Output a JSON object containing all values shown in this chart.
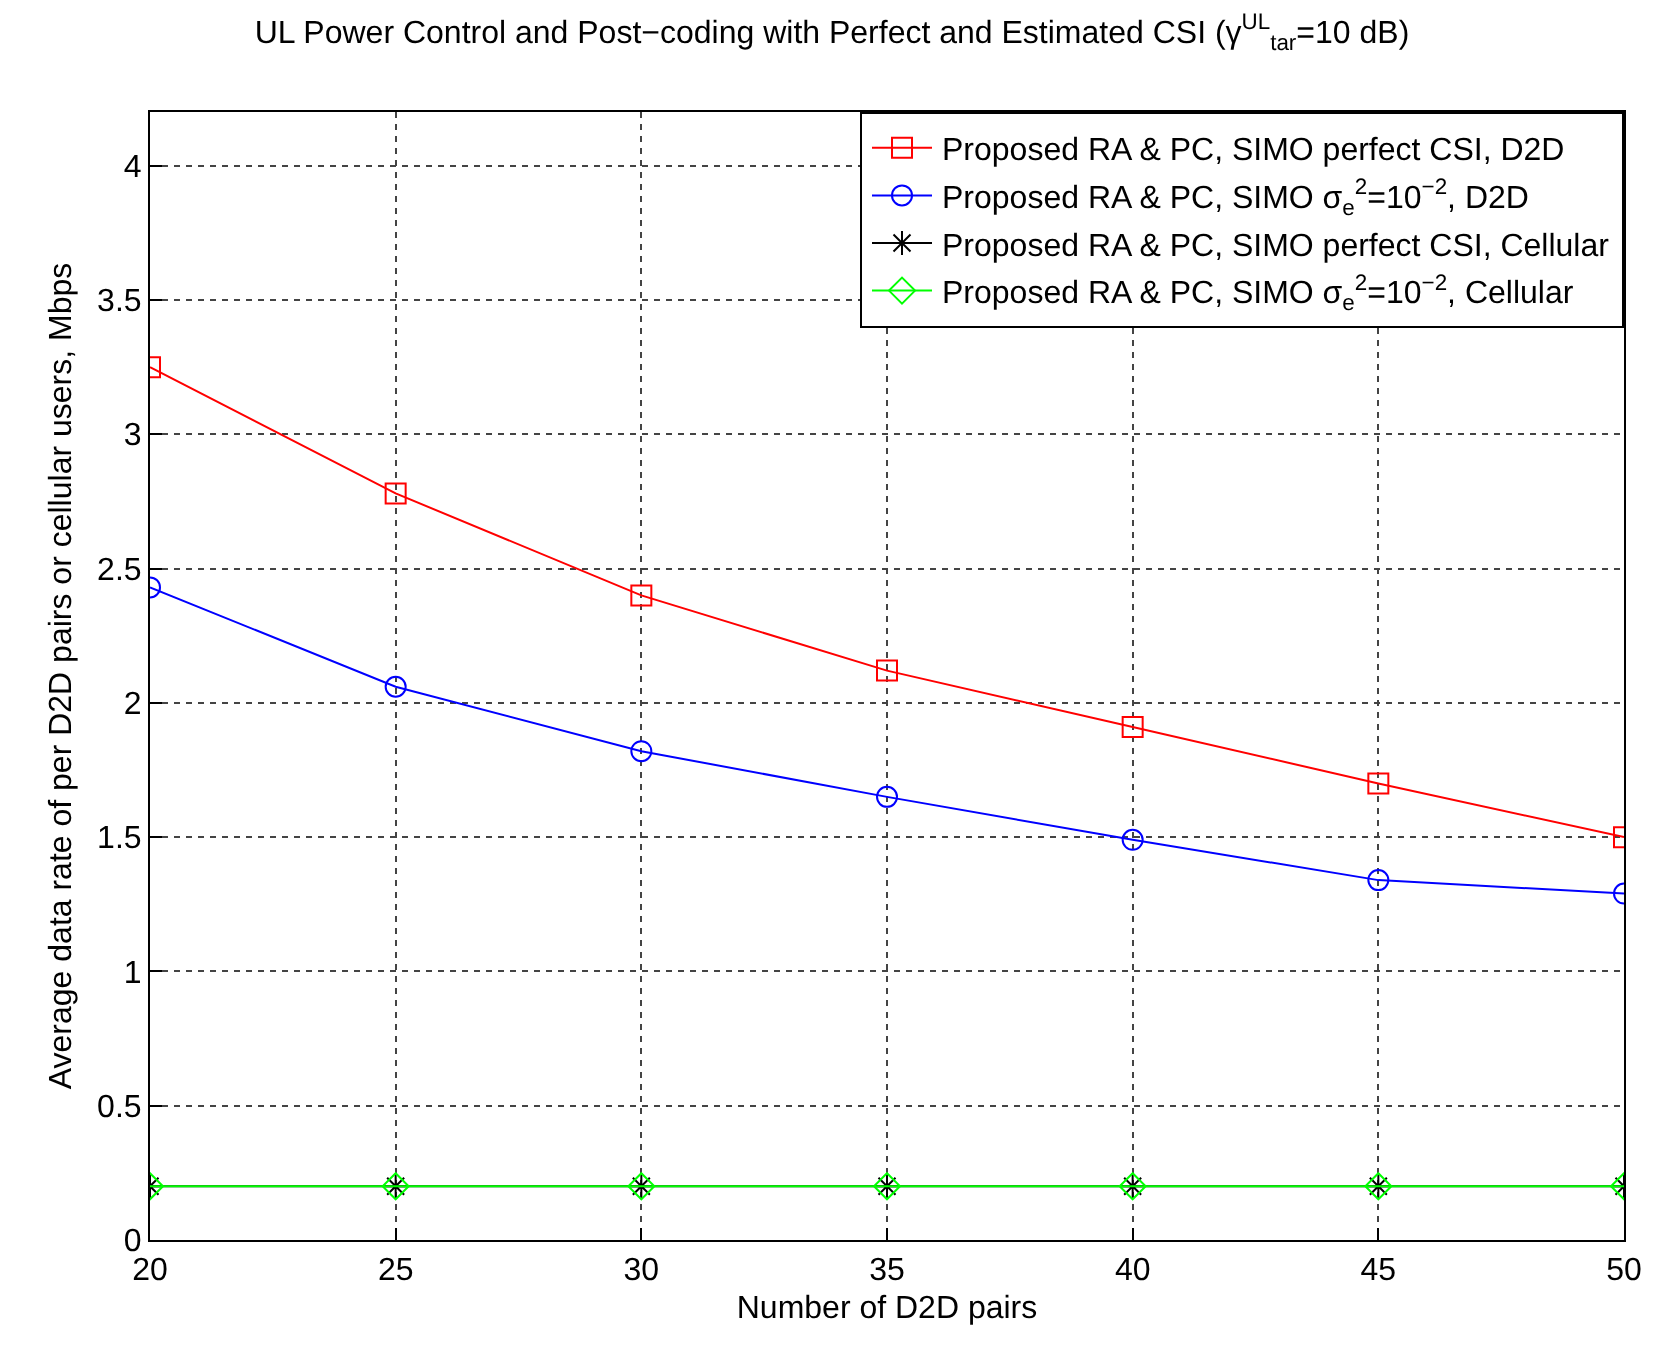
{
  "chart_data": {
    "type": "line",
    "title": "UL Power Control and Post−coding with Perfect and Estimated CSI (γ$^{UL}$$_{tar}$=10 dB)",
    "xlabel": "Number of D2D pairs",
    "ylabel": "Average data rate of per D2D pairs or cellular users, Mbps",
    "x": [
      20,
      25,
      30,
      35,
      40,
      45,
      50
    ],
    "xlim": [
      20,
      50
    ],
    "xticks": [
      20,
      25,
      30,
      35,
      40,
      45,
      50
    ],
    "ylim": [
      0,
      4.2
    ],
    "yticks": [
      0,
      0.5,
      1,
      1.5,
      2,
      2.5,
      3,
      3.5,
      4
    ],
    "grid": true,
    "legend": "top right",
    "line_style": "solid",
    "series": [
      {
        "name": "Proposed RA & PC, SIMO perfect CSI, D2D",
        "color": "#ff0000",
        "marker": "square",
        "values": [
          3.25,
          2.78,
          2.4,
          2.12,
          1.91,
          1.7,
          1.5
        ]
      },
      {
        "name": "Proposed RA & PC, SIMO σ$_{e}$$^{2}$=10$^{−2}$, D2D",
        "color": "#0000ff",
        "marker": "circle",
        "values": [
          2.43,
          2.06,
          1.82,
          1.65,
          1.49,
          1.34,
          1.29
        ]
      },
      {
        "name": "Proposed RA & PC, SIMO perfect CSI, Cellular",
        "color": "#000000",
        "marker": "cross",
        "values": [
          0.2,
          0.2,
          0.2,
          0.2,
          0.2,
          0.2,
          0.2
        ]
      },
      {
        "name": "Proposed RA & PC, SIMO σ$_{e}$$^{2}$=10$^{−2}$, Cellular",
        "color": "#00ff00",
        "marker": "diamond",
        "values": [
          0.2,
          0.2,
          0.2,
          0.2,
          0.2,
          0.2,
          0.2
        ]
      }
    ]
  }
}
